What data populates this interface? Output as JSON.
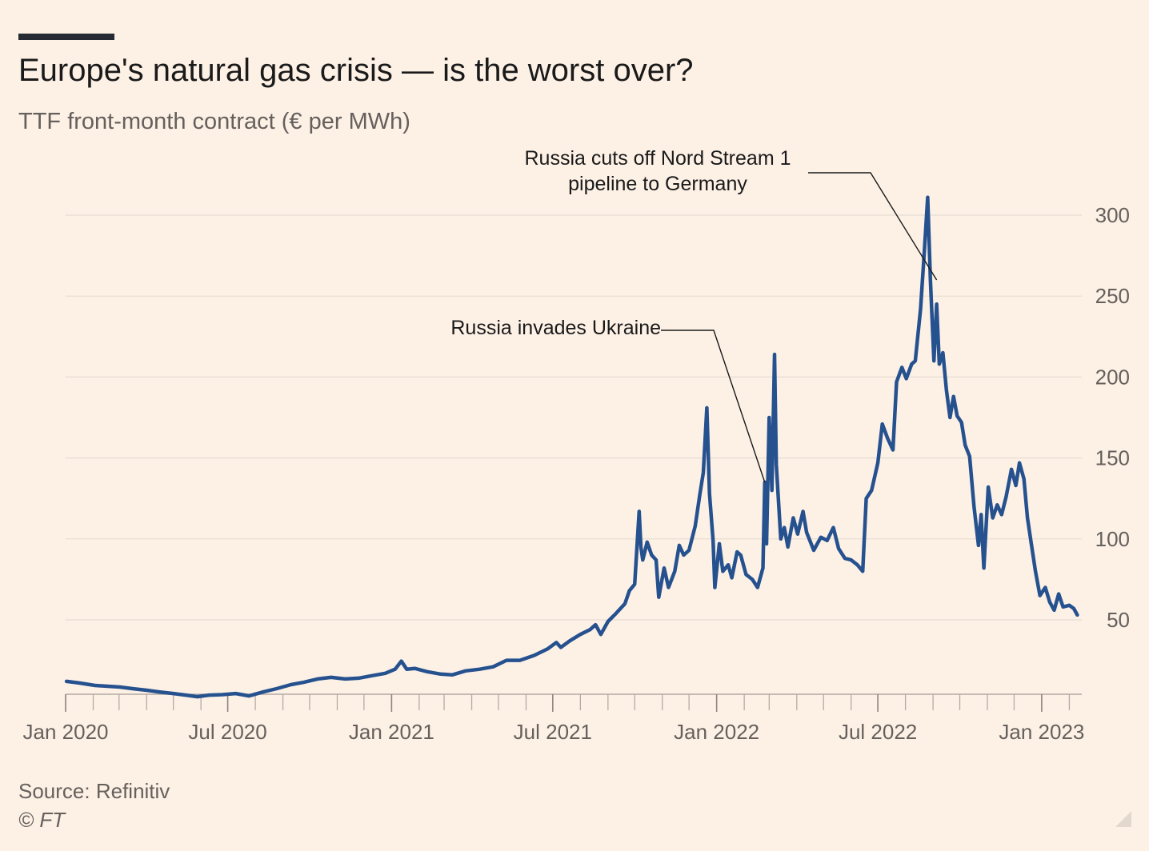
{
  "header": {
    "title": "Europe's natural gas crisis — is the worst over?",
    "subtitle": "TTF front-month contract (€ per MWh)"
  },
  "footer": {
    "source": "Source: Refinitiv",
    "copyright": "© FT"
  },
  "colors": {
    "background": "#fdf1e6",
    "line": "#26518f",
    "grid": "#e6dcd2",
    "axis": "#b3aba4",
    "text_muted": "#66605c"
  },
  "chart_data": {
    "type": "line",
    "title": "Europe's natural gas crisis — is the worst over?",
    "subtitle": "TTF front-month contract (€ per MWh)",
    "xlabel": "",
    "ylabel": "",
    "y_axis_side": "right",
    "grid": "horizontal",
    "ylim": [
      0,
      300
    ],
    "yticks": [
      50,
      100,
      150,
      200,
      250,
      300
    ],
    "xlim": [
      "2020-01-01",
      "2023-02-15"
    ],
    "xticks": [
      {
        "date": "2020-01-01",
        "label": "Jan 2020"
      },
      {
        "date": "2020-07-01",
        "label": "Jul 2020"
      },
      {
        "date": "2021-01-01",
        "label": "Jan 2021"
      },
      {
        "date": "2021-07-01",
        "label": "Jul 2021"
      },
      {
        "date": "2022-01-01",
        "label": "Jan 2022"
      },
      {
        "date": "2022-07-01",
        "label": "Jul 2022"
      },
      {
        "date": "2023-01-01",
        "label": "Jan 2023"
      }
    ],
    "annotations": [
      {
        "lines": [
          "Russia cuts off Nord Stream 1",
          "pipeline to Germany"
        ],
        "date": "2022-09-05",
        "value": 260
      },
      {
        "lines": [
          "Russia invades Ukraine"
        ],
        "date": "2022-02-24",
        "value": 135
      }
    ],
    "series": [
      {
        "name": "",
        "points": [
          [
            "2020-01-02",
            12
          ],
          [
            "2020-01-16",
            11
          ],
          [
            "2020-02-03",
            9.5
          ],
          [
            "2020-02-17",
            9
          ],
          [
            "2020-03-02",
            8.5
          ],
          [
            "2020-03-16",
            7.5
          ],
          [
            "2020-04-01",
            6.5
          ],
          [
            "2020-04-15",
            5.5
          ],
          [
            "2020-05-01",
            4.5
          ],
          [
            "2020-05-15",
            3.5
          ],
          [
            "2020-05-28",
            2.5
          ],
          [
            "2020-06-10",
            3.5
          ],
          [
            "2020-06-25",
            3.8
          ],
          [
            "2020-07-10",
            4.5
          ],
          [
            "2020-07-25",
            3
          ],
          [
            "2020-08-10",
            5.5
          ],
          [
            "2020-08-25",
            7.5
          ],
          [
            "2020-09-10",
            10
          ],
          [
            "2020-09-25",
            11.5
          ],
          [
            "2020-10-10",
            13.5
          ],
          [
            "2020-10-25",
            14.5
          ],
          [
            "2020-11-10",
            13.5
          ],
          [
            "2020-11-25",
            14
          ],
          [
            "2020-12-10",
            15.5
          ],
          [
            "2020-12-25",
            17
          ],
          [
            "2021-01-05",
            19.5
          ],
          [
            "2021-01-12",
            24.5
          ],
          [
            "2021-01-18",
            19.5
          ],
          [
            "2021-01-27",
            20
          ],
          [
            "2021-02-10",
            18
          ],
          [
            "2021-02-25",
            16.5
          ],
          [
            "2021-03-10",
            16
          ],
          [
            "2021-03-25",
            18.5
          ],
          [
            "2021-04-10",
            19.5
          ],
          [
            "2021-04-25",
            21
          ],
          [
            "2021-05-10",
            25
          ],
          [
            "2021-05-25",
            25
          ],
          [
            "2021-06-10",
            28
          ],
          [
            "2021-06-25",
            32
          ],
          [
            "2021-07-05",
            36
          ],
          [
            "2021-07-10",
            33
          ],
          [
            "2021-07-20",
            37
          ],
          [
            "2021-08-01",
            41
          ],
          [
            "2021-08-12",
            44
          ],
          [
            "2021-08-18",
            47
          ],
          [
            "2021-08-24",
            41
          ],
          [
            "2021-09-01",
            49
          ],
          [
            "2021-09-10",
            54
          ],
          [
            "2021-09-20",
            60
          ],
          [
            "2021-09-25",
            68
          ],
          [
            "2021-10-01",
            72
          ],
          [
            "2021-10-06",
            117
          ],
          [
            "2021-10-08",
            95
          ],
          [
            "2021-10-10",
            87
          ],
          [
            "2021-10-15",
            98
          ],
          [
            "2021-10-20",
            90
          ],
          [
            "2021-10-25",
            87
          ],
          [
            "2021-10-28",
            64
          ],
          [
            "2021-11-03",
            82
          ],
          [
            "2021-11-08",
            70
          ],
          [
            "2021-11-15",
            80
          ],
          [
            "2021-11-20",
            96
          ],
          [
            "2021-11-25",
            90
          ],
          [
            "2021-12-01",
            93
          ],
          [
            "2021-12-08",
            108
          ],
          [
            "2021-12-13",
            127
          ],
          [
            "2021-12-17",
            141
          ],
          [
            "2021-12-21",
            181
          ],
          [
            "2021-12-24",
            128
          ],
          [
            "2021-12-28",
            99
          ],
          [
            "2021-12-30",
            70
          ],
          [
            "2022-01-04",
            97
          ],
          [
            "2022-01-08",
            80
          ],
          [
            "2022-01-14",
            84
          ],
          [
            "2022-01-18",
            76
          ],
          [
            "2022-01-24",
            92
          ],
          [
            "2022-01-28",
            90
          ],
          [
            "2022-02-03",
            78
          ],
          [
            "2022-02-10",
            75
          ],
          [
            "2022-02-16",
            70
          ],
          [
            "2022-02-22",
            82
          ],
          [
            "2022-02-24",
            135
          ],
          [
            "2022-02-26",
            97
          ],
          [
            "2022-03-01",
            175
          ],
          [
            "2022-03-04",
            130
          ],
          [
            "2022-03-07",
            214
          ],
          [
            "2022-03-09",
            146
          ],
          [
            "2022-03-14",
            100
          ],
          [
            "2022-03-18",
            107
          ],
          [
            "2022-03-22",
            95
          ],
          [
            "2022-03-28",
            113
          ],
          [
            "2022-04-02",
            103
          ],
          [
            "2022-04-08",
            117
          ],
          [
            "2022-04-12",
            104
          ],
          [
            "2022-04-20",
            93
          ],
          [
            "2022-04-28",
            101
          ],
          [
            "2022-05-05",
            99
          ],
          [
            "2022-05-12",
            107
          ],
          [
            "2022-05-18",
            94
          ],
          [
            "2022-05-25",
            88
          ],
          [
            "2022-06-01",
            87
          ],
          [
            "2022-06-08",
            84
          ],
          [
            "2022-06-14",
            80
          ],
          [
            "2022-06-18",
            125
          ],
          [
            "2022-06-24",
            130
          ],
          [
            "2022-07-01",
            147
          ],
          [
            "2022-07-06",
            171
          ],
          [
            "2022-07-12",
            162
          ],
          [
            "2022-07-18",
            155
          ],
          [
            "2022-07-22",
            197
          ],
          [
            "2022-07-28",
            206
          ],
          [
            "2022-08-02",
            199
          ],
          [
            "2022-08-08",
            208
          ],
          [
            "2022-08-12",
            210
          ],
          [
            "2022-08-18",
            242
          ],
          [
            "2022-08-22",
            276
          ],
          [
            "2022-08-26",
            311
          ],
          [
            "2022-08-29",
            260
          ],
          [
            "2022-09-02",
            210
          ],
          [
            "2022-09-05",
            245
          ],
          [
            "2022-09-08",
            208
          ],
          [
            "2022-09-12",
            215
          ],
          [
            "2022-09-16",
            192
          ],
          [
            "2022-09-20",
            175
          ],
          [
            "2022-09-24",
            188
          ],
          [
            "2022-09-28",
            176
          ],
          [
            "2022-10-03",
            172
          ],
          [
            "2022-10-07",
            158
          ],
          [
            "2022-10-12",
            151
          ],
          [
            "2022-10-17",
            120
          ],
          [
            "2022-10-22",
            96
          ],
          [
            "2022-10-25",
            115
          ],
          [
            "2022-10-28",
            82
          ],
          [
            "2022-11-02",
            132
          ],
          [
            "2022-11-07",
            113
          ],
          [
            "2022-11-12",
            121
          ],
          [
            "2022-11-17",
            115
          ],
          [
            "2022-11-22",
            126
          ],
          [
            "2022-11-28",
            143
          ],
          [
            "2022-12-03",
            133
          ],
          [
            "2022-12-07",
            147
          ],
          [
            "2022-12-12",
            137
          ],
          [
            "2022-12-16",
            113
          ],
          [
            "2022-12-20",
            98
          ],
          [
            "2022-12-25",
            80
          ],
          [
            "2022-12-30",
            65
          ],
          [
            "2023-01-05",
            70
          ],
          [
            "2023-01-10",
            61
          ],
          [
            "2023-01-15",
            56
          ],
          [
            "2023-01-20",
            66
          ],
          [
            "2023-01-25",
            58
          ],
          [
            "2023-02-01",
            59
          ],
          [
            "2023-02-06",
            57
          ],
          [
            "2023-02-10",
            53
          ]
        ]
      }
    ]
  }
}
